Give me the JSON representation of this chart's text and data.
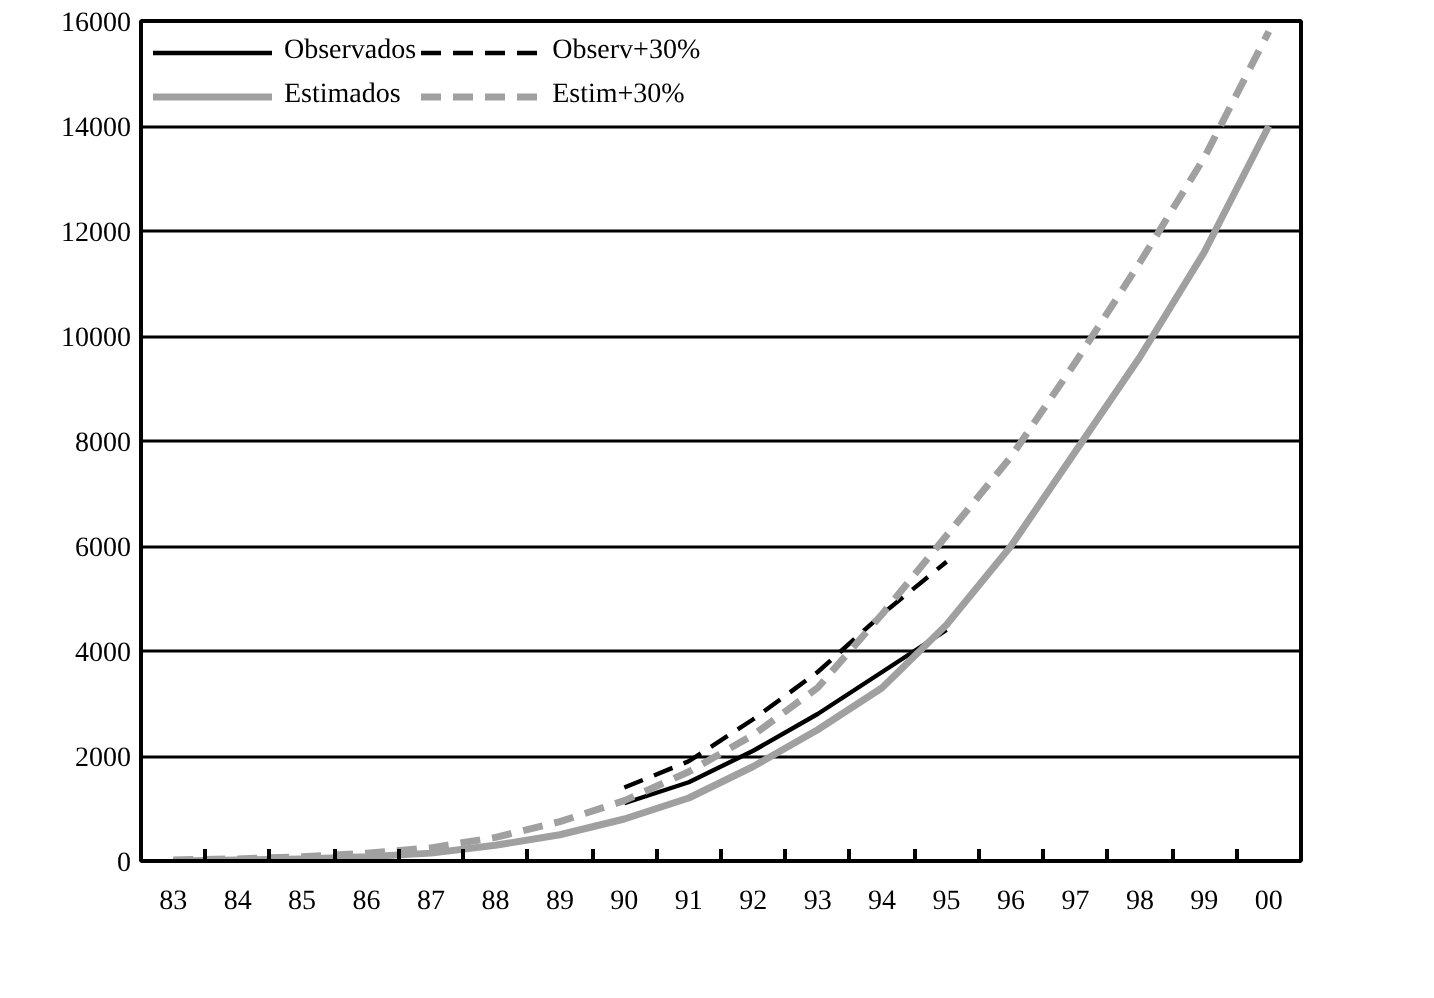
{
  "chart_data": {
    "type": "line",
    "categories": [
      "83",
      "84",
      "85",
      "86",
      "87",
      "88",
      "89",
      "90",
      "91",
      "92",
      "93",
      "94",
      "95",
      "96",
      "97",
      "98",
      "99",
      "00"
    ],
    "series": [
      {
        "name": "Observados",
        "color": "#000000",
        "line_style": "solid",
        "values": [
          null,
          null,
          null,
          null,
          null,
          null,
          null,
          1100,
          1500,
          2100,
          2800,
          3600,
          4400,
          null,
          null,
          null,
          null,
          null
        ]
      },
      {
        "name": "Observ+30%",
        "color": "#000000",
        "line_style": "dashed",
        "values": [
          null,
          null,
          null,
          null,
          null,
          null,
          null,
          1400,
          1900,
          2700,
          3600,
          4700,
          5700,
          null,
          null,
          null,
          null,
          null
        ]
      },
      {
        "name": "Estimados",
        "color": "#a0a0a0",
        "line_style": "solid",
        "values": [
          0,
          20,
          40,
          80,
          150,
          300,
          500,
          800,
          1200,
          1800,
          2500,
          3300,
          4500,
          6000,
          7800,
          9600,
          11600,
          14000
        ]
      },
      {
        "name": "Estim+30%",
        "color": "#a0a0a0",
        "line_style": "dashed",
        "values": [
          20,
          40,
          80,
          150,
          250,
          450,
          750,
          1150,
          1700,
          2400,
          3300,
          4700,
          6200,
          7700,
          9500,
          11400,
          13400,
          15800
        ]
      }
    ],
    "ylim": [
      0,
      16000
    ],
    "yticks": [
      0,
      2000,
      4000,
      6000,
      8000,
      10000,
      12000,
      14000,
      16000
    ],
    "grid": "y",
    "legend": "top left",
    "marker": "none"
  }
}
